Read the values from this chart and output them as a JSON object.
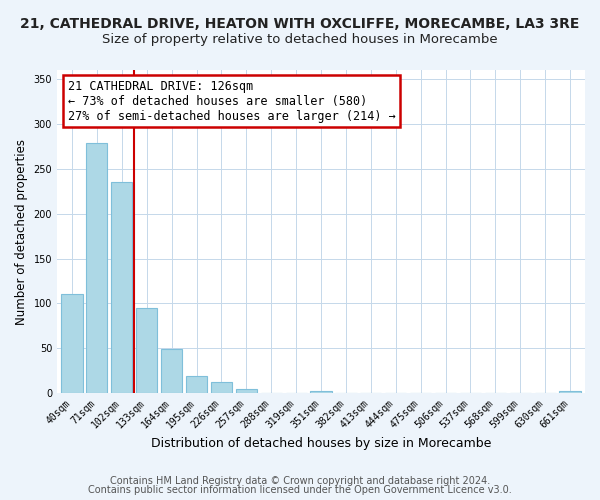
{
  "title": "21, CATHEDRAL DRIVE, HEATON WITH OXCLIFFE, MORECAMBE, LA3 3RE",
  "subtitle": "Size of property relative to detached houses in Morecambe",
  "xlabel": "Distribution of detached houses by size in Morecambe",
  "ylabel": "Number of detached properties",
  "bar_labels": [
    "40sqm",
    "71sqm",
    "102sqm",
    "133sqm",
    "164sqm",
    "195sqm",
    "226sqm",
    "257sqm",
    "288sqm",
    "319sqm",
    "351sqm",
    "382sqm",
    "413sqm",
    "444sqm",
    "475sqm",
    "506sqm",
    "537sqm",
    "568sqm",
    "599sqm",
    "630sqm",
    "661sqm"
  ],
  "bar_values": [
    111,
    279,
    235,
    95,
    49,
    19,
    12,
    5,
    0,
    0,
    2,
    0,
    0,
    0,
    0,
    0,
    0,
    0,
    0,
    0,
    2
  ],
  "bar_color": "#add8e6",
  "bar_edge_color": "#7fbfda",
  "vline_color": "#cc0000",
  "annotation_line1": "21 CATHEDRAL DRIVE: 126sqm",
  "annotation_line2": "← 73% of detached houses are smaller (580)",
  "annotation_line3": "27% of semi-detached houses are larger (214) →",
  "annotation_box_color": "white",
  "annotation_box_edge": "#cc0000",
  "ylim": [
    0,
    360
  ],
  "yticks": [
    0,
    50,
    100,
    150,
    200,
    250,
    300,
    350
  ],
  "footer_line1": "Contains HM Land Registry data © Crown copyright and database right 2024.",
  "footer_line2": "Contains public sector information licensed under the Open Government Licence v3.0.",
  "bg_color": "#edf4fb",
  "plot_bg_color": "white",
  "title_fontsize": 10,
  "subtitle_fontsize": 9.5,
  "xlabel_fontsize": 9,
  "ylabel_fontsize": 8.5,
  "tick_fontsize": 7,
  "annotation_fontsize": 8.5,
  "footer_fontsize": 7
}
